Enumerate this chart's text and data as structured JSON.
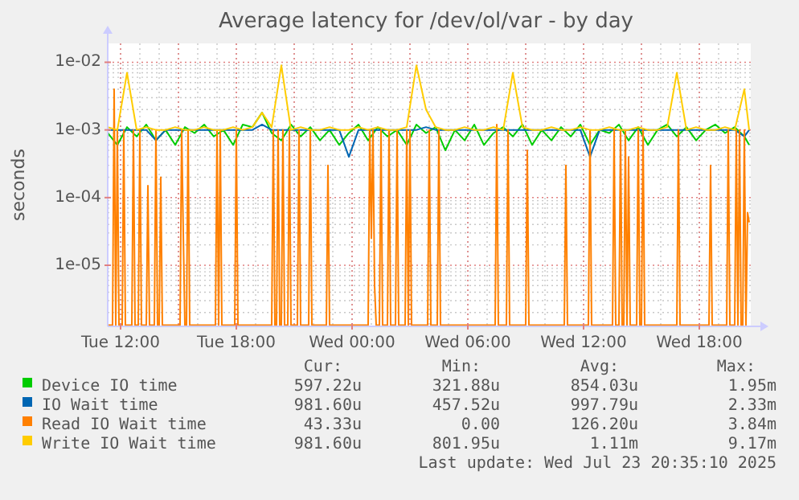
{
  "chart_data": {
    "type": "line",
    "title": "Average latency for /dev/ol/var - by day",
    "ylabel": "seconds",
    "log": true,
    "grid": true,
    "legend": "bottom",
    "marker": "none",
    "line_style": "solid",
    "xlim": [
      "2025-07-22T11:20",
      "2025-07-23T20:40"
    ],
    "ylim": [
      1.25e-06,
      0.019
    ],
    "xticks": [
      {
        "value": "2025-07-22T12:00",
        "label": "Tue 12:00"
      },
      {
        "value": "2025-07-22T18:00",
        "label": "Tue 18:00"
      },
      {
        "value": "2025-07-23T00:00",
        "label": "Wed 00:00"
      },
      {
        "value": "2025-07-23T06:00",
        "label": "Wed 06:00"
      },
      {
        "value": "2025-07-23T12:00",
        "label": "Wed 12:00"
      },
      {
        "value": "2025-07-23T18:00",
        "label": "Wed 18:00"
      }
    ],
    "yticks": [
      {
        "value": 0.01,
        "label": "1e-02"
      },
      {
        "value": 0.001,
        "label": "1e-03"
      },
      {
        "value": 0.0001,
        "label": "1e-04"
      },
      {
        "value": 1e-05,
        "label": "1e-05"
      }
    ],
    "x": [
      "2025-07-22T11:20",
      "2025-07-22T11:50",
      "2025-07-22T12:20",
      "2025-07-22T12:50",
      "2025-07-22T13:20",
      "2025-07-22T13:50",
      "2025-07-22T14:20",
      "2025-07-22T14:50",
      "2025-07-22T15:20",
      "2025-07-22T15:50",
      "2025-07-22T16:20",
      "2025-07-22T16:50",
      "2025-07-22T17:20",
      "2025-07-22T17:50",
      "2025-07-22T18:20",
      "2025-07-22T18:50",
      "2025-07-22T19:20",
      "2025-07-22T19:50",
      "2025-07-22T20:20",
      "2025-07-22T20:50",
      "2025-07-22T21:20",
      "2025-07-22T21:50",
      "2025-07-22T22:20",
      "2025-07-22T22:50",
      "2025-07-22T23:20",
      "2025-07-22T23:50",
      "2025-07-23T00:20",
      "2025-07-23T00:50",
      "2025-07-23T01:20",
      "2025-07-23T01:50",
      "2025-07-23T02:20",
      "2025-07-23T02:50",
      "2025-07-23T03:20",
      "2025-07-23T03:50",
      "2025-07-23T04:20",
      "2025-07-23T04:50",
      "2025-07-23T05:20",
      "2025-07-23T05:50",
      "2025-07-23T06:20",
      "2025-07-23T06:50",
      "2025-07-23T07:20",
      "2025-07-23T07:50",
      "2025-07-23T08:20",
      "2025-07-23T08:50",
      "2025-07-23T09:20",
      "2025-07-23T09:50",
      "2025-07-23T10:20",
      "2025-07-23T10:50",
      "2025-07-23T11:20",
      "2025-07-23T11:50",
      "2025-07-23T12:20",
      "2025-07-23T12:50",
      "2025-07-23T13:20",
      "2025-07-23T13:50",
      "2025-07-23T14:20",
      "2025-07-23T14:50",
      "2025-07-23T15:20",
      "2025-07-23T15:50",
      "2025-07-23T16:20",
      "2025-07-23T16:50",
      "2025-07-23T17:20",
      "2025-07-23T17:50",
      "2025-07-23T18:20",
      "2025-07-23T18:50",
      "2025-07-23T19:20",
      "2025-07-23T19:50",
      "2025-07-23T20:20",
      "2025-07-23T20:35"
    ],
    "series": [
      {
        "name": "Device IO time",
        "color": "#00cc00",
        "values": [
          0.0009,
          0.0006,
          0.0011,
          0.0008,
          0.0012,
          0.0007,
          0.001,
          0.0006,
          0.0011,
          0.0009,
          0.0012,
          0.0008,
          0.001,
          0.0006,
          0.0012,
          0.0011,
          0.0018,
          0.0009,
          0.0007,
          0.0012,
          0.0008,
          0.0011,
          0.0007,
          0.001,
          0.0006,
          0.0009,
          0.0012,
          0.0007,
          0.0011,
          0.0008,
          0.001,
          0.0006,
          0.0012,
          0.0009,
          0.0011,
          0.0005,
          0.001,
          0.0007,
          0.0012,
          0.0006,
          0.0009,
          0.0011,
          0.0008,
          0.0012,
          0.0006,
          0.001,
          0.0007,
          0.0011,
          0.0008,
          0.0012,
          0.0006,
          0.001,
          0.0009,
          0.0012,
          0.0007,
          0.0011,
          0.0006,
          0.001,
          0.0012,
          0.0008,
          0.0011,
          0.0007,
          0.001,
          0.0012,
          0.0009,
          0.0011,
          0.0008,
          0.0006
        ]
      },
      {
        "name": "IO Wait time",
        "color": "#0066b3",
        "values": [
          0.001,
          0.001,
          0.001,
          0.001,
          0.001,
          0.0007,
          0.001,
          0.001,
          0.001,
          0.001,
          0.001,
          0.001,
          0.001,
          0.001,
          0.001,
          0.001,
          0.0012,
          0.001,
          0.001,
          0.001,
          0.001,
          0.001,
          0.001,
          0.001,
          0.001,
          0.0004,
          0.001,
          0.001,
          0.001,
          0.001,
          0.001,
          0.001,
          0.001,
          0.0011,
          0.001,
          0.001,
          0.001,
          0.001,
          0.001,
          0.001,
          0.001,
          0.001,
          0.001,
          0.001,
          0.001,
          0.001,
          0.001,
          0.001,
          0.001,
          0.001,
          0.0004,
          0.001,
          0.001,
          0.001,
          0.001,
          0.001,
          0.001,
          0.001,
          0.001,
          0.001,
          0.001,
          0.001,
          0.001,
          0.001,
          0.001,
          0.001,
          0.0008,
          0.001
        ]
      },
      {
        "name": "Read IO Wait time",
        "color": "#ff8000",
        "x": [
          "2025-07-22T11:20",
          "2025-07-22T11:35",
          "2025-07-22T11:40",
          "2025-07-22T11:45",
          "2025-07-22T11:50",
          "2025-07-22T11:55",
          "2025-07-22T12:05",
          "2025-07-22T12:10",
          "2025-07-22T12:15",
          "2025-07-22T12:35",
          "2025-07-22T12:40",
          "2025-07-22T12:45",
          "2025-07-22T12:55",
          "2025-07-22T13:00",
          "2025-07-22T13:05",
          "2025-07-22T13:20",
          "2025-07-22T13:25",
          "2025-07-22T13:30",
          "2025-07-22T13:45",
          "2025-07-22T13:50",
          "2025-07-22T13:55",
          "2025-07-22T14:00",
          "2025-07-22T14:05",
          "2025-07-22T14:10",
          "2025-07-22T15:05",
          "2025-07-22T15:10",
          "2025-07-22T15:15",
          "2025-07-22T15:20",
          "2025-07-22T15:25",
          "2025-07-22T15:30",
          "2025-07-22T15:35",
          "2025-07-22T16:55",
          "2025-07-22T17:00",
          "2025-07-22T17:05",
          "2025-07-22T17:10",
          "2025-07-22T17:15",
          "2025-07-22T17:55",
          "2025-07-22T18:00",
          "2025-07-22T18:05",
          "2025-07-22T19:50",
          "2025-07-22T19:55",
          "2025-07-22T20:00",
          "2025-07-22T20:05",
          "2025-07-22T20:10",
          "2025-07-22T20:15",
          "2025-07-22T20:20",
          "2025-07-22T20:25",
          "2025-07-22T20:30",
          "2025-07-22T20:40",
          "2025-07-22T20:45",
          "2025-07-22T20:50",
          "2025-07-22T21:10",
          "2025-07-22T21:15",
          "2025-07-22T21:20",
          "2025-07-22T21:45",
          "2025-07-22T21:50",
          "2025-07-22T21:55",
          "2025-07-22T22:40",
          "2025-07-22T22:45",
          "2025-07-22T22:50",
          "2025-07-23T00:50",
          "2025-07-23T00:55",
          "2025-07-23T01:00",
          "2025-07-23T01:05",
          "2025-07-23T01:10",
          "2025-07-23T01:15",
          "2025-07-23T01:25",
          "2025-07-23T01:30",
          "2025-07-23T01:35",
          "2025-07-23T01:50",
          "2025-07-23T01:55",
          "2025-07-23T02:00",
          "2025-07-23T02:15",
          "2025-07-23T02:20",
          "2025-07-23T02:25",
          "2025-07-23T02:45",
          "2025-07-23T02:50",
          "2025-07-23T02:55",
          "2025-07-23T03:00",
          "2025-07-23T03:05",
          "2025-07-23T03:55",
          "2025-07-23T04:00",
          "2025-07-23T04:05",
          "2025-07-23T04:25",
          "2025-07-23T04:30",
          "2025-07-23T04:35",
          "2025-07-23T07:25",
          "2025-07-23T07:30",
          "2025-07-23T07:35",
          "2025-07-23T08:00",
          "2025-07-23T08:05",
          "2025-07-23T08:10",
          "2025-07-23T09:00",
          "2025-07-23T09:05",
          "2025-07-23T09:10",
          "2025-07-23T11:00",
          "2025-07-23T11:05",
          "2025-07-23T11:10",
          "2025-07-23T12:15",
          "2025-07-23T12:20",
          "2025-07-23T12:25",
          "2025-07-23T13:30",
          "2025-07-23T13:35",
          "2025-07-23T13:40",
          "2025-07-23T13:50",
          "2025-07-23T13:55",
          "2025-07-23T14:00",
          "2025-07-23T14:05",
          "2025-07-23T14:10",
          "2025-07-23T14:15",
          "2025-07-23T14:20",
          "2025-07-23T14:25",
          "2025-07-23T14:45",
          "2025-07-23T14:50",
          "2025-07-23T14:55",
          "2025-07-23T15:00",
          "2025-07-23T15:05",
          "2025-07-23T15:10",
          "2025-07-23T16:50",
          "2025-07-23T16:55",
          "2025-07-23T17:00",
          "2025-07-23T18:30",
          "2025-07-23T18:35",
          "2025-07-23T18:40",
          "2025-07-23T19:25",
          "2025-07-23T19:30",
          "2025-07-23T19:35",
          "2025-07-23T19:50",
          "2025-07-23T19:55",
          "2025-07-23T20:00",
          "2025-07-23T20:05",
          "2025-07-23T20:10",
          "2025-07-23T20:15",
          "2025-07-23T20:20",
          "2025-07-23T20:25",
          "2025-07-23T20:30",
          "2025-07-23T20:35"
        ],
        "values": [
          1.3e-06,
          1.3e-06,
          0.004,
          1.3e-06,
          0.001,
          1.3e-06,
          1.3e-06,
          0.001,
          1.3e-06,
          1.3e-06,
          0.001,
          1.3e-06,
          1.3e-06,
          0.001,
          1.3e-06,
          1.3e-06,
          0.00015,
          1.3e-06,
          1.3e-06,
          0.001,
          1.3e-06,
          1.3e-06,
          0.0002,
          1.3e-06,
          1.3e-06,
          0.001,
          3e-05,
          1.3e-06,
          1.3e-06,
          0.001,
          1.3e-06,
          1.3e-06,
          0.001,
          1.3e-06,
          0.001,
          1.3e-06,
          1.3e-06,
          0.001,
          1.3e-06,
          1.3e-06,
          0.001,
          1.3e-06,
          1.3e-06,
          0.001,
          1.3e-06,
          1.3e-06,
          0.001,
          1.3e-06,
          1.3e-06,
          0.001,
          1.3e-06,
          1.3e-06,
          0.001,
          1.3e-06,
          1.3e-06,
          0.001,
          1.3e-06,
          1.3e-06,
          0.0003,
          1.3e-06,
          1.3e-06,
          0.001,
          2.5e-05,
          0.001,
          5e-06,
          1.3e-06,
          1.3e-06,
          0.001,
          1.3e-06,
          1.3e-06,
          0.001,
          1.3e-06,
          1.3e-06,
          0.001,
          1.3e-06,
          1.3e-06,
          0.001,
          1.3e-06,
          0.001,
          1.3e-06,
          1.3e-06,
          0.001,
          1.3e-06,
          1.3e-06,
          0.001,
          1.3e-06,
          1.3e-06,
          0.0012,
          1.3e-06,
          1.3e-06,
          0.001,
          1.3e-06,
          1.3e-06,
          0.0005,
          1.3e-06,
          1.3e-06,
          0.0003,
          1.3e-06,
          1.3e-06,
          0.001,
          1.3e-06,
          1.3e-06,
          0.001,
          1.3e-06,
          1.3e-06,
          0.001,
          1.3e-06,
          1.3e-06,
          0.001,
          1.3e-06,
          0.0004,
          1.3e-06,
          1.3e-06,
          0.001,
          1.3e-06,
          1.3e-06,
          0.001,
          1.3e-06,
          1.3e-06,
          0.001,
          1.3e-06,
          1.3e-06,
          0.0003,
          1.3e-06,
          1.3e-06,
          0.001,
          1.3e-06,
          1.3e-06,
          0.001,
          1.3e-06,
          0.001,
          1.3e-06,
          1.3e-06,
          0.001,
          1.3e-06,
          6e-05,
          4.3e-05
        ]
      },
      {
        "name": "Write IO Wait time",
        "color": "#ffcc00",
        "values": [
          0.0011,
          0.001,
          0.007,
          0.001,
          0.0011,
          0.001,
          0.001,
          0.0011,
          0.001,
          0.001,
          0.0011,
          0.001,
          0.001,
          0.0011,
          0.001,
          0.0011,
          0.0018,
          0.0011,
          0.009,
          0.001,
          0.0011,
          0.001,
          0.001,
          0.0011,
          0.001,
          0.001,
          0.0011,
          0.001,
          0.0011,
          0.001,
          0.001,
          0.0011,
          0.009,
          0.002,
          0.0011,
          0.001,
          0.001,
          0.0011,
          0.001,
          0.001,
          0.0011,
          0.001,
          0.007,
          0.0011,
          0.001,
          0.001,
          0.0011,
          0.001,
          0.001,
          0.0011,
          0.001,
          0.001,
          0.0011,
          0.001,
          0.001,
          0.0011,
          0.001,
          0.001,
          0.0011,
          0.007,
          0.001,
          0.0011,
          0.001,
          0.001,
          0.0011,
          0.001,
          0.004,
          0.001
        ]
      }
    ],
    "annotations": [
      "Cur:",
      "Min:",
      "Avg:",
      "Max:",
      "597.22u",
      "321.88u",
      "854.03u",
      "1.95m",
      "981.60u",
      "457.52u",
      "997.79u",
      "2.33m",
      "43.33u",
      "0.00",
      "126.20u",
      "3.84m",
      "981.60u",
      "801.95u",
      "1.11m",
      "9.17m",
      "Last update: Wed Jul 23 20:35:10 2025"
    ]
  }
}
